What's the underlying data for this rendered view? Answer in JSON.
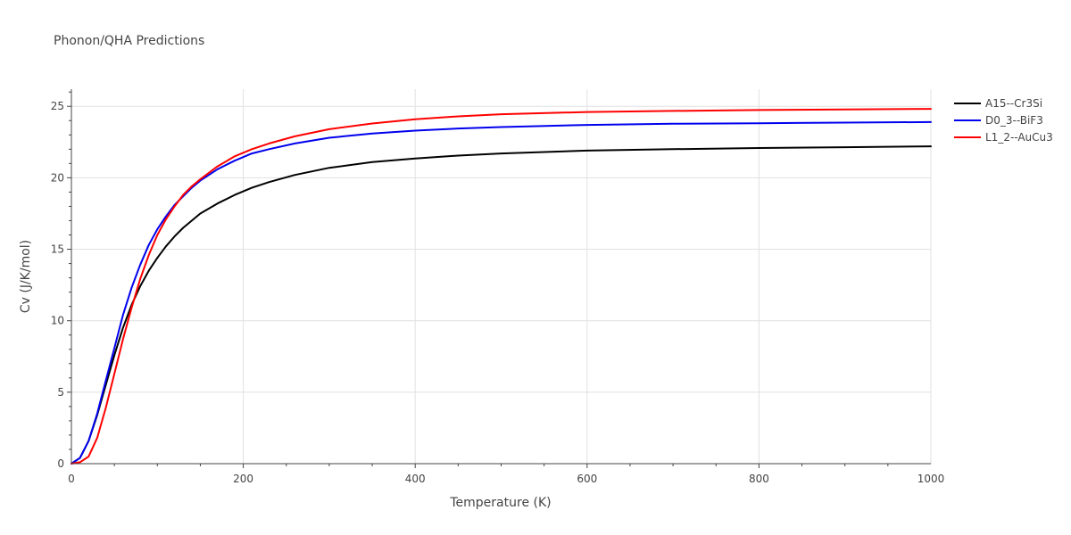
{
  "chart_data": {
    "type": "line",
    "title": "Phonon/QHA Predictions",
    "xlabel": "Temperature (K)",
    "ylabel": "Cv (J/K/mol)",
    "xlim": [
      0,
      1000
    ],
    "ylim": [
      0,
      26.2
    ],
    "x_ticks": [
      0,
      200,
      400,
      600,
      800,
      1000
    ],
    "x_tick_labels": [
      "0",
      "200",
      "400",
      "600",
      "800",
      "1000"
    ],
    "y_ticks": [
      0,
      5,
      10,
      15,
      20,
      25
    ],
    "y_tick_labels": [
      "0",
      "5",
      "10",
      "15",
      "20",
      "25"
    ],
    "grid": true,
    "legend_position": "top-right-outside",
    "series": [
      {
        "name": "A15--Cr3Si",
        "color": "#000000",
        "x": [
          0,
          10,
          20,
          30,
          40,
          50,
          60,
          70,
          80,
          90,
          100,
          110,
          120,
          130,
          140,
          150,
          170,
          190,
          210,
          230,
          260,
          300,
          350,
          400,
          450,
          500,
          600,
          700,
          800,
          900,
          1000
        ],
        "y": [
          0,
          0.4,
          1.6,
          3.4,
          5.5,
          7.6,
          9.5,
          11.1,
          12.4,
          13.5,
          14.4,
          15.2,
          15.9,
          16.5,
          17.0,
          17.5,
          18.2,
          18.8,
          19.3,
          19.7,
          20.2,
          20.7,
          21.1,
          21.35,
          21.55,
          21.7,
          21.9,
          22.0,
          22.08,
          22.14,
          22.2
        ]
      },
      {
        "name": "D0_3--BiF3",
        "color": "#0000ee",
        "x": [
          0,
          10,
          20,
          30,
          40,
          50,
          60,
          70,
          80,
          90,
          100,
          110,
          120,
          130,
          140,
          150,
          170,
          190,
          210,
          230,
          260,
          300,
          350,
          400,
          450,
          500,
          600,
          700,
          800,
          900,
          1000
        ],
        "y": [
          0,
          0.4,
          1.6,
          3.5,
          5.8,
          8.1,
          10.4,
          12.3,
          13.9,
          15.3,
          16.4,
          17.3,
          18.1,
          18.7,
          19.3,
          19.8,
          20.6,
          21.2,
          21.7,
          22.0,
          22.4,
          22.8,
          23.1,
          23.3,
          23.45,
          23.55,
          23.7,
          23.78,
          23.82,
          23.86,
          23.9
        ]
      },
      {
        "name": "L1_2--AuCu3",
        "color": "#ff0000",
        "x": [
          0,
          10,
          20,
          30,
          40,
          50,
          60,
          70,
          80,
          90,
          100,
          110,
          120,
          130,
          140,
          150,
          170,
          190,
          210,
          230,
          260,
          300,
          350,
          400,
          450,
          500,
          600,
          700,
          800,
          900,
          1000
        ],
        "y": [
          0,
          0.1,
          0.5,
          1.8,
          3.9,
          6.3,
          8.7,
          10.9,
          12.9,
          14.6,
          16.0,
          17.1,
          18.0,
          18.8,
          19.4,
          19.9,
          20.8,
          21.5,
          22.0,
          22.4,
          22.9,
          23.4,
          23.8,
          24.1,
          24.3,
          24.45,
          24.6,
          24.68,
          24.74,
          24.78,
          24.82
        ]
      }
    ]
  }
}
